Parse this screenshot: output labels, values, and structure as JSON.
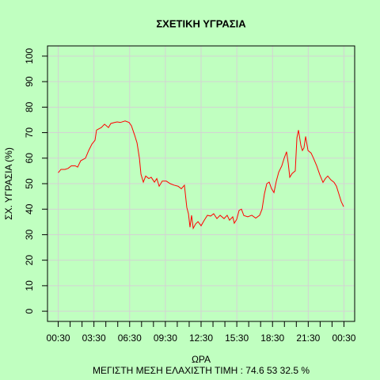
{
  "chart_data": {
    "type": "line",
    "title": "ΣΧΕΤΙΚΗ ΥΓΡΑΣΙΑ",
    "x_label": "ΩΡΑ",
    "y_label": "ΣΧ. ΥΓΡΑΣΙΑ (%)",
    "subtitle": "ΜΕΓΙΣΤΗ ΜΕΣΗ ΕΛΑΧΙΣΤΗ ΤΙΜΗ :  74.6  53  32.5   %",
    "color": "#ff0000",
    "grid": true,
    "xlim": [
      -0.9,
      24.9
    ],
    "ylim": [
      -4,
      104
    ],
    "yticks": [
      0,
      10,
      20,
      30,
      40,
      50,
      60,
      70,
      80,
      90,
      100
    ],
    "xticks": [
      {
        "value": 0,
        "label": "00:30"
      },
      {
        "value": 3,
        "label": "03:30"
      },
      {
        "value": 6,
        "label": "06:30"
      },
      {
        "value": 9,
        "label": "09:30"
      },
      {
        "value": 12,
        "label": "12:30"
      },
      {
        "value": 15,
        "label": "15:30"
      },
      {
        "value": 18,
        "label": "18:30"
      },
      {
        "value": 21,
        "label": "21:30"
      },
      {
        "value": 24,
        "label": "00:30"
      }
    ],
    "xminorticks": [
      1,
      2,
      4,
      5,
      7,
      8,
      10,
      11,
      13,
      14,
      16,
      17,
      19,
      20,
      22,
      23
    ],
    "x": [
      0,
      0.23,
      0.57,
      0.83,
      1.1,
      1.43,
      1.63,
      1.89,
      2.29,
      2.56,
      2.83,
      3.09,
      3.22,
      3.62,
      3.89,
      4.22,
      4.42,
      4.75,
      4.95,
      5.22,
      5.62,
      5.95,
      6.15,
      6.42,
      6.62,
      6.82,
      6.95,
      7.15,
      7.35,
      7.61,
      7.81,
      8.08,
      8.28,
      8.48,
      8.74,
      9.08,
      9.41,
      9.74,
      10.07,
      10.34,
      10.6,
      10.8,
      10.94,
      11.07,
      11.2,
      11.34,
      11.54,
      11.74,
      12,
      12.27,
      12.53,
      12.8,
      13.06,
      13.33,
      13.6,
      13.93,
      14.19,
      14.39,
      14.66,
      14.79,
      14.99,
      15.19,
      15.39,
      15.59,
      15.92,
      16.26,
      16.59,
      16.92,
      17.12,
      17.32,
      17.52,
      17.72,
      17.92,
      18.12,
      18.32,
      18.52,
      18.78,
      18.98,
      19.18,
      19.32,
      19.45,
      19.65,
      19.91,
      20.05,
      20.18,
      20.38,
      20.51,
      20.64,
      20.78,
      20.98,
      21.24,
      21.44,
      21.71,
      21.97,
      22.24,
      22.44,
      22.64,
      22.9,
      23.17,
      23.37,
      23.57,
      23.77,
      23.97
    ],
    "values": [
      54.3,
      55.6,
      55.6,
      56,
      57,
      57,
      56.5,
      59,
      60,
      63,
      65.5,
      67,
      71,
      72,
      73.3,
      72,
      73.6,
      74,
      74.2,
      74,
      74.6,
      74,
      72.7,
      69,
      66,
      60,
      53.7,
      50.6,
      53,
      52,
      52.5,
      50.6,
      52,
      49,
      51,
      51,
      50,
      49.4,
      49,
      48,
      49.4,
      40.7,
      38.2,
      32.9,
      37.6,
      32.5,
      34.2,
      35.1,
      33.5,
      35.7,
      37.6,
      37.3,
      38.2,
      36.3,
      37.6,
      36.3,
      37.6,
      35.7,
      37,
      34.5,
      36,
      39.5,
      40,
      37.5,
      37,
      37.6,
      36.5,
      37.6,
      40,
      46,
      50,
      50.6,
      48,
      46.5,
      51,
      54.5,
      57,
      60,
      62.5,
      58,
      52.5,
      54,
      55,
      68,
      71,
      65,
      63,
      64,
      68.5,
      63,
      62,
      60,
      57,
      53.5,
      50.5,
      52,
      53,
      51.5,
      50.5,
      49,
      46,
      43,
      41
    ]
  }
}
